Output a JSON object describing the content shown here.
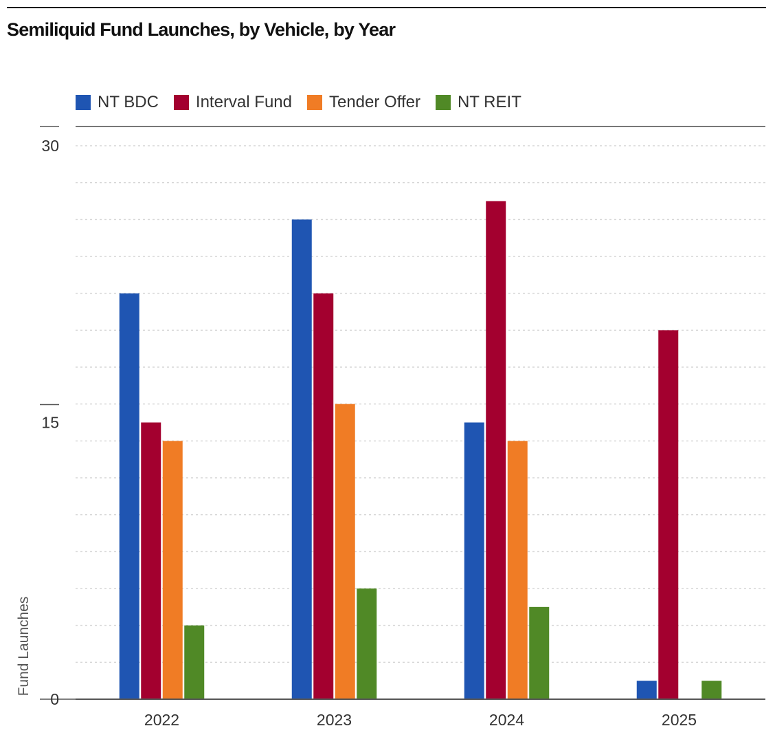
{
  "title": "Semiliquid Fund Launches, by Vehicle, by Year",
  "chart_data": {
    "type": "bar",
    "title": "Semiliquid Fund Launches, by Vehicle, by Year",
    "xlabel": "",
    "ylabel": "Fund Launches",
    "ylim": [
      0,
      30
    ],
    "yticks": [
      "0",
      "15",
      "30"
    ],
    "categories": [
      "2022",
      "2023",
      "2024",
      "2025"
    ],
    "grid": "horizontal dotted, every 2",
    "legend": "top-left",
    "series": [
      {
        "name": "NT BDC",
        "color": "#1f55b2",
        "values": [
          22,
          26,
          15,
          1
        ]
      },
      {
        "name": "Interval Fund",
        "color": "#a3002f",
        "values": [
          15,
          22,
          27,
          20
        ]
      },
      {
        "name": "Tender Offer",
        "color": "#f07c25",
        "values": [
          14,
          16,
          14,
          0
        ]
      },
      {
        "name": "NT REIT",
        "color": "#508926",
        "values": [
          4,
          6,
          5,
          1
        ]
      }
    ]
  }
}
